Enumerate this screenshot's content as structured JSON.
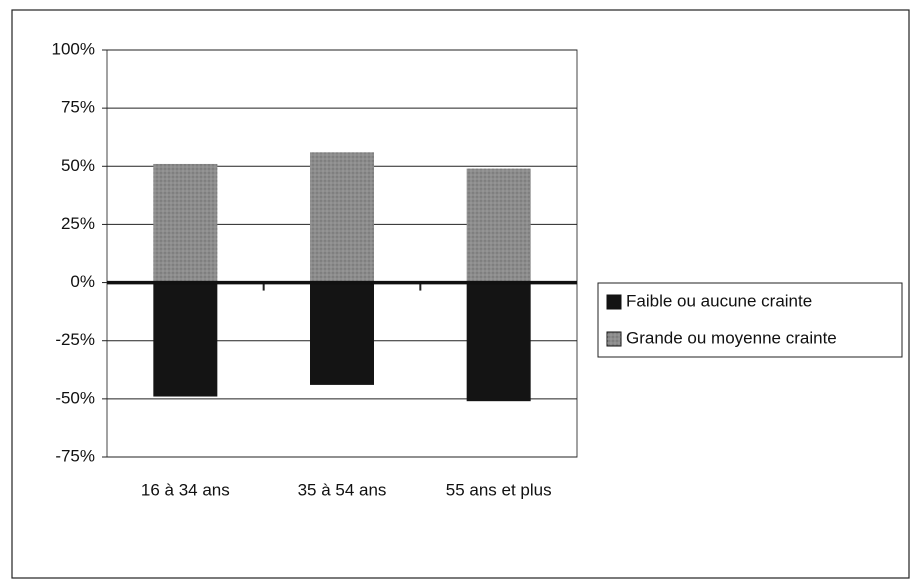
{
  "chart_data": {
    "type": "bar",
    "categories": [
      "16 à 34 ans",
      "35 à 54 ans",
      "55 ans et plus"
    ],
    "series": [
      {
        "name": "Faible ou aucune crainte",
        "color": "#141414",
        "values": [
          -49,
          -44,
          -51
        ]
      },
      {
        "name": "Grande ou moyenne crainte",
        "color": "#8c8c8c",
        "values": [
          51,
          56,
          49
        ]
      }
    ],
    "ylim": [
      -75,
      100
    ],
    "yticks": [
      {
        "value": -75,
        "label": "-75%"
      },
      {
        "value": -50,
        "label": "-50%"
      },
      {
        "value": -25,
        "label": "-25%"
      },
      {
        "value": 0,
        "label": "0%"
      },
      {
        "value": 25,
        "label": "25%"
      },
      {
        "value": 50,
        "label": "50%"
      },
      {
        "value": 75,
        "label": "75%"
      },
      {
        "value": 100,
        "label": "100%"
      }
    ],
    "grid": true,
    "legend": "right"
  }
}
